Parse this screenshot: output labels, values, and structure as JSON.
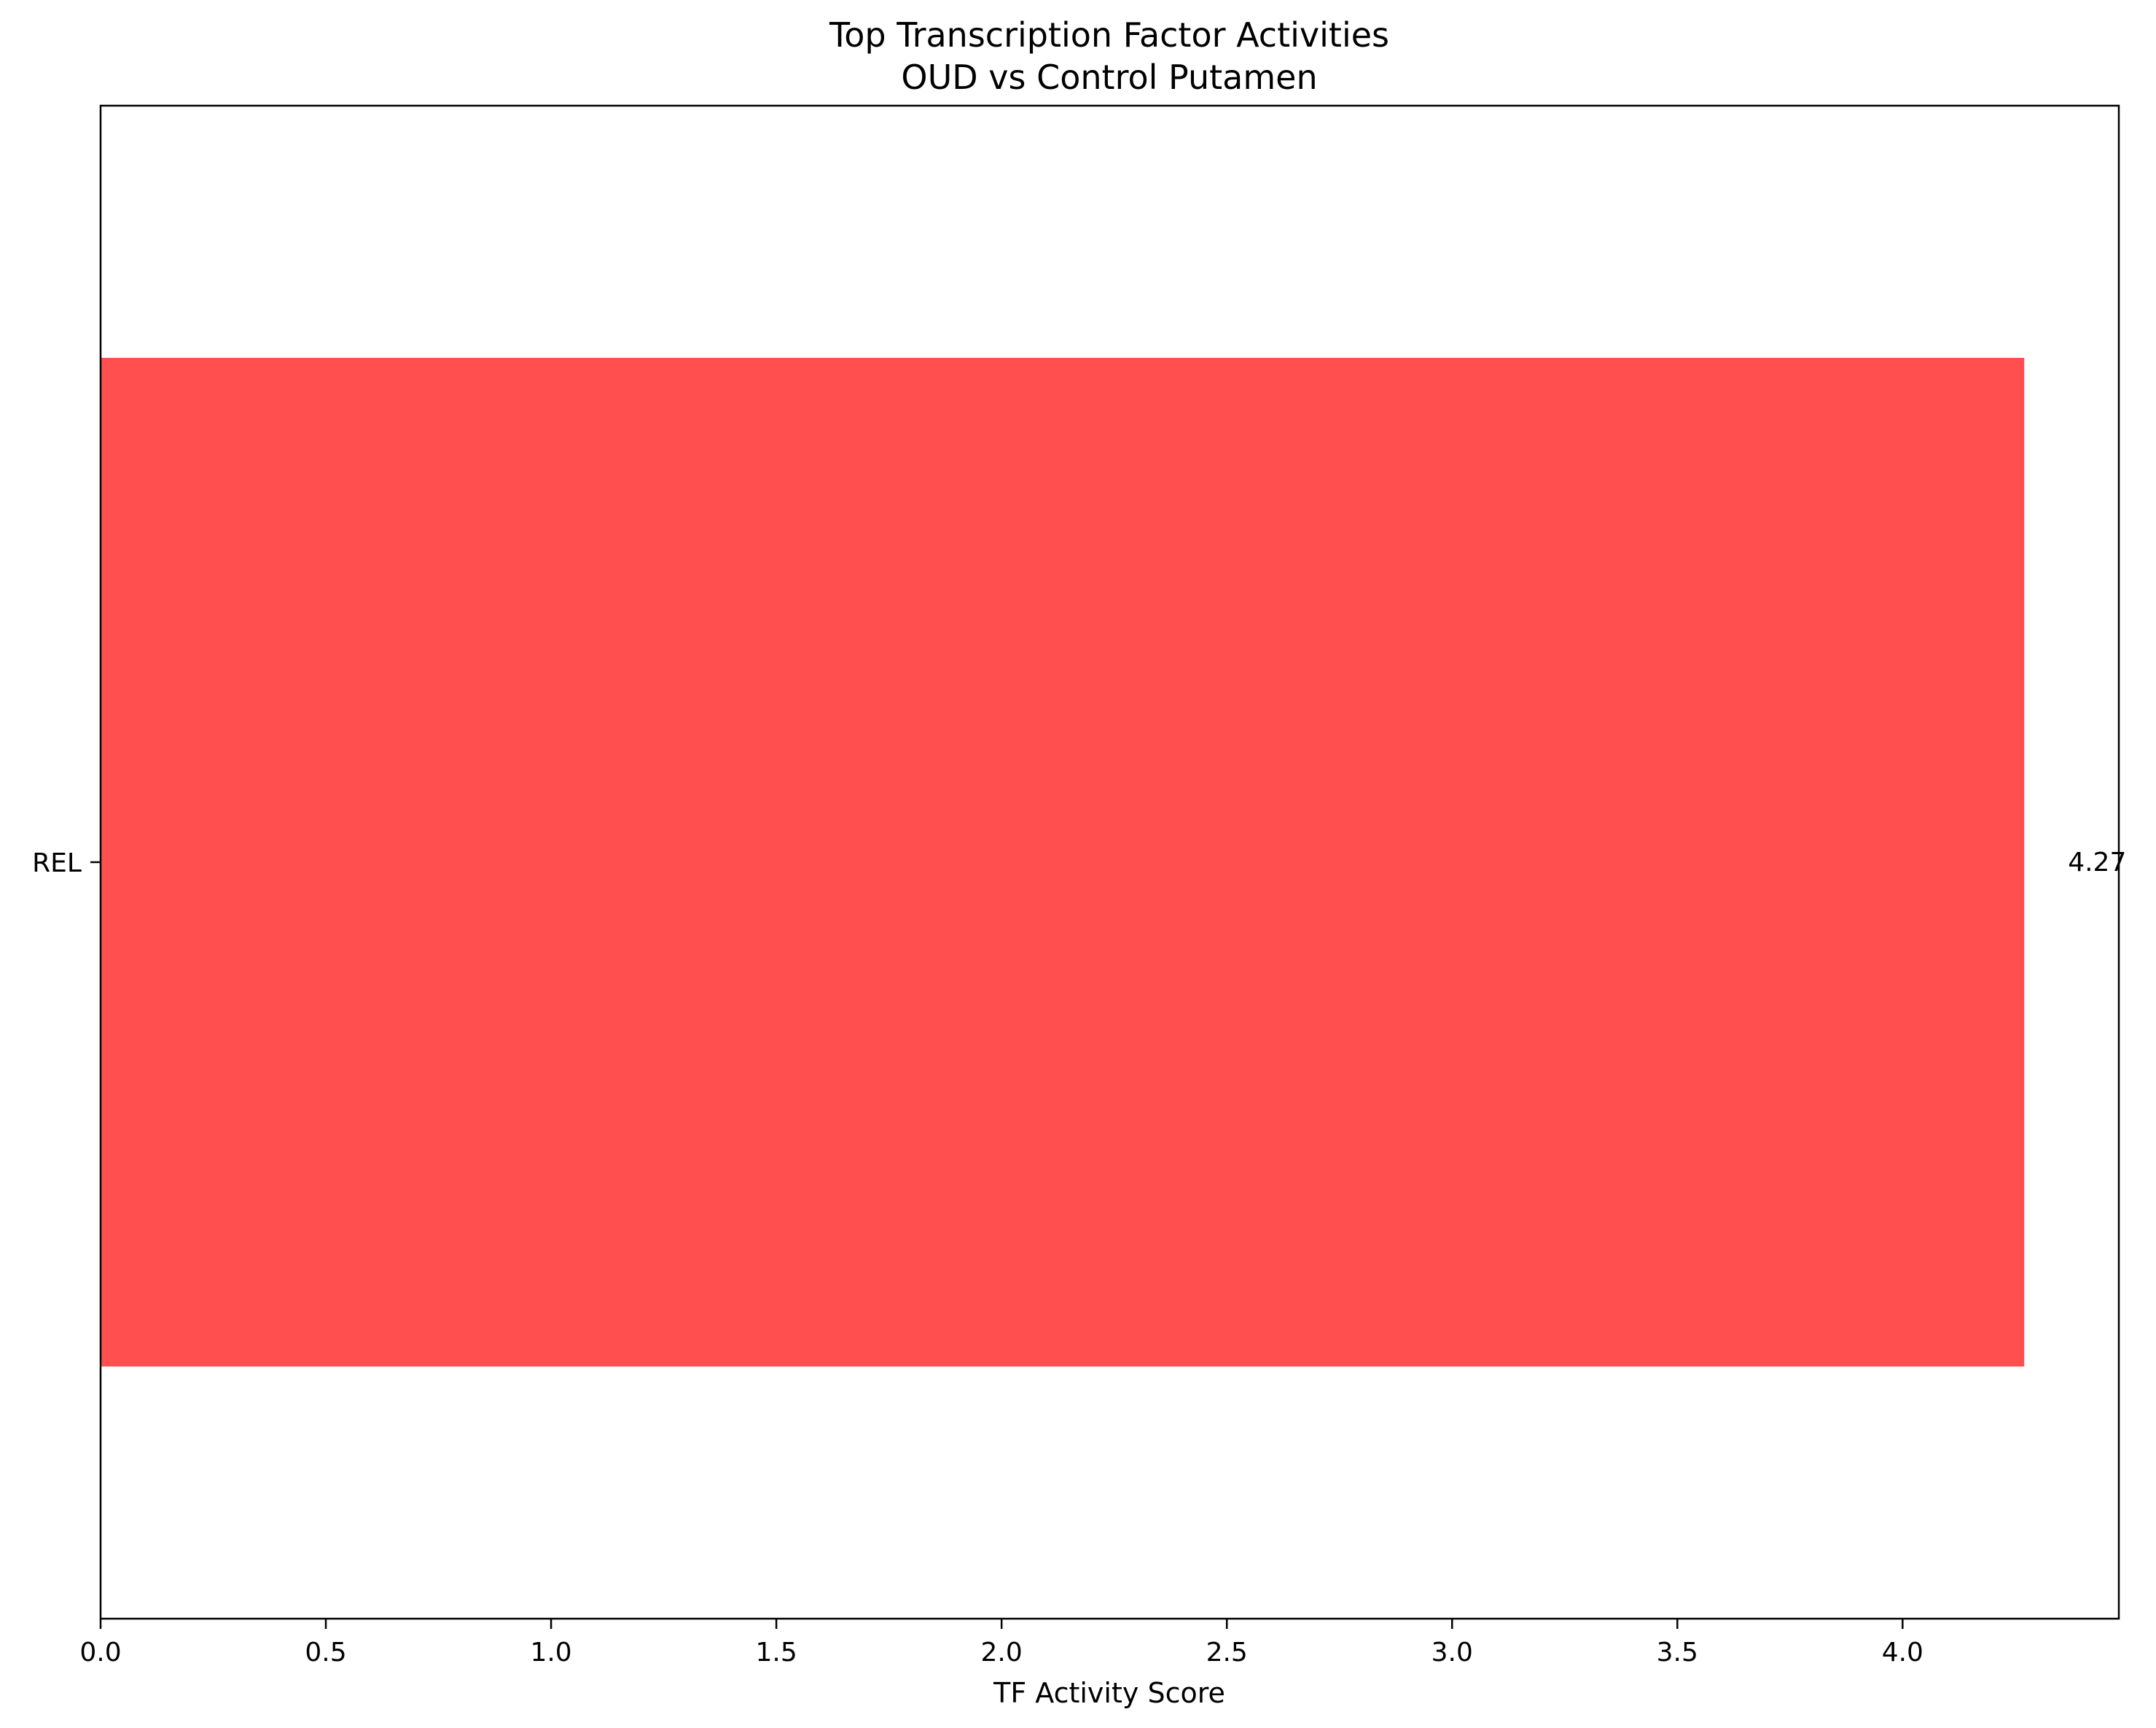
{
  "chart_data": {
    "type": "bar",
    "orientation": "horizontal",
    "title": "Top Transcription Factor Activities",
    "subtitle": "OUD vs Control Putamen",
    "xlabel": "TF Activity Score",
    "ylabel": "",
    "categories": [
      "REL"
    ],
    "values": [
      4.27
    ],
    "data_labels": [
      "4.27"
    ],
    "xlim": [
      0,
      4.48
    ],
    "xticks": [
      "0.0",
      "0.5",
      "1.0",
      "1.5",
      "2.0",
      "2.5",
      "3.0",
      "3.5",
      "4.0"
    ],
    "bar_color": "#ff4f4f",
    "grid": false,
    "legend": "none"
  }
}
